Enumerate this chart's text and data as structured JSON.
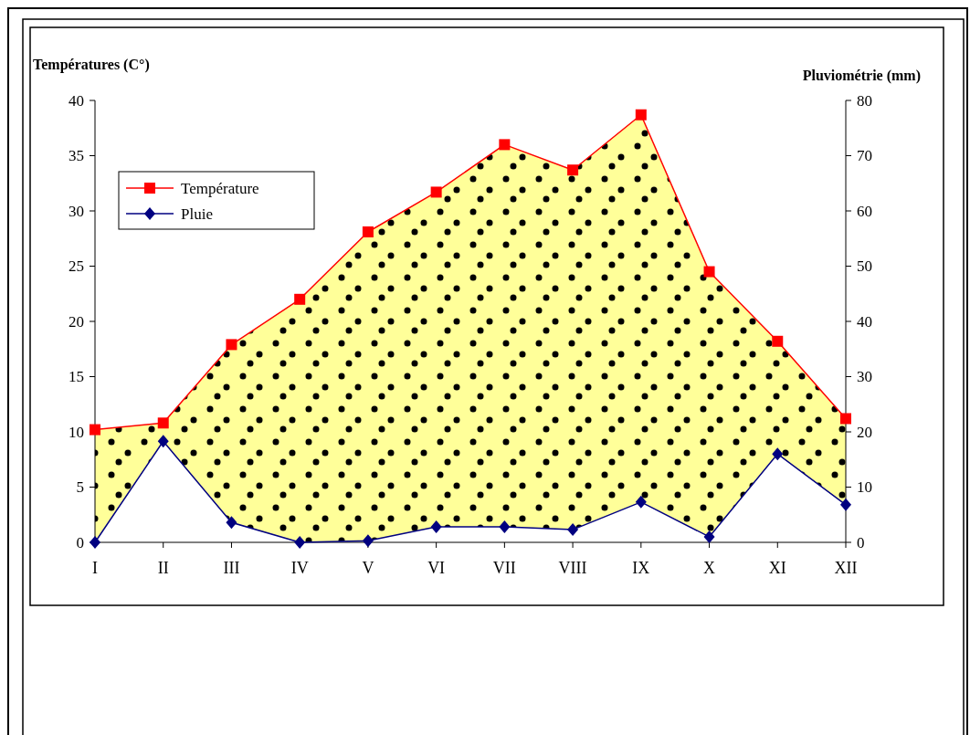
{
  "chart_data": {
    "type": "line",
    "ylabel": "Températures (C°)",
    "y2label": "Pluviométrie (mm)",
    "categories": [
      "I",
      "II",
      "III",
      "IV",
      "V",
      "VI",
      "VII",
      "VIII",
      "IX",
      "X",
      "XI",
      "XII"
    ],
    "series": [
      {
        "name": "Température",
        "type": "area",
        "color": "#ff0000",
        "marker": "square",
        "values": [
          10.2,
          10.8,
          17.9,
          22,
          28.1,
          31.7,
          36,
          33.7,
          38.7,
          24.5,
          18.2,
          11.2
        ]
      },
      {
        "name": "Pluie",
        "color": "#000080",
        "marker": "diamond",
        "axis": "y2",
        "values": [
          0,
          18.3,
          3.6,
          0,
          0.3,
          2.8,
          2.8,
          2.3,
          7.3,
          1,
          16,
          6.8
        ]
      }
    ],
    "ylim": [
      0,
      40
    ],
    "yticks": [
      0,
      5,
      10,
      15,
      20,
      25,
      30,
      35,
      40
    ],
    "y2lim": [
      0,
      80
    ],
    "y2ticks": [
      0,
      10,
      20,
      30,
      40,
      50,
      60,
      70,
      80
    ],
    "legend": "top left",
    "grid": false
  }
}
